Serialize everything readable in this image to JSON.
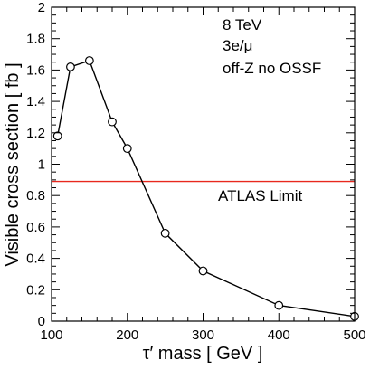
{
  "chart_data": {
    "type": "line",
    "xlabel": "τ′ mass  [ GeV ]",
    "ylabel": "Visible cross section [ fb ]",
    "xlim": [
      100,
      500
    ],
    "ylim": [
      0,
      2
    ],
    "x_ticks": [
      "100",
      "200",
      "300",
      "400",
      "500"
    ],
    "y_ticks": [
      "0",
      "0.2",
      "0.4",
      "0.6",
      "0.8",
      "1",
      "1.2",
      "1.4",
      "1.6",
      "1.8",
      "2"
    ],
    "grid": false,
    "annotations": [
      "8 TeV",
      "3e/μ",
      "off-Z no OSSF"
    ],
    "series": [
      {
        "x": [
          108,
          125,
          150,
          180,
          200,
          250,
          300,
          400,
          500
        ],
        "values": [
          1.18,
          1.62,
          1.66,
          1.27,
          1.1,
          0.56,
          0.32,
          0.1,
          0.03
        ],
        "marker": "open-circle",
        "color": "#000000"
      }
    ],
    "reference_lines": [
      {
        "label": "ATLAS Limit",
        "y": 0.89,
        "color": "#e8281e"
      }
    ]
  }
}
